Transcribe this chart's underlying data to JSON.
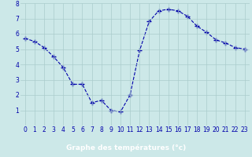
{
  "hours": [
    0,
    1,
    2,
    3,
    4,
    5,
    6,
    7,
    8,
    9,
    10,
    11,
    12,
    13,
    14,
    15,
    16,
    17,
    18,
    19,
    20,
    21,
    22,
    23
  ],
  "temps": [
    5.7,
    5.5,
    5.1,
    4.5,
    3.8,
    2.7,
    2.7,
    1.5,
    1.65,
    1.0,
    0.9,
    2.0,
    4.9,
    6.8,
    7.5,
    7.6,
    7.5,
    7.15,
    6.5,
    6.1,
    5.6,
    5.4,
    5.1,
    5.0
  ],
  "xlim": [
    -0.5,
    23.5
  ],
  "ylim": [
    0,
    8
  ],
  "yticks": [
    1,
    2,
    3,
    4,
    5,
    6,
    7,
    8
  ],
  "xticks": [
    0,
    1,
    2,
    3,
    4,
    5,
    6,
    7,
    8,
    9,
    10,
    11,
    12,
    13,
    14,
    15,
    16,
    17,
    18,
    19,
    20,
    21,
    22,
    23
  ],
  "line_color": "#0000aa",
  "marker": "+",
  "marker_size": 4.0,
  "bg_color": "#cce8e8",
  "grid_color": "#aacccc",
  "xlabel": "Graphe des températures (°c)",
  "xlabel_bg": "#0000aa",
  "xlabel_color": "#ffffff",
  "tick_label_color": "#0000aa",
  "tick_fontsize": 5.5,
  "xlabel_fontsize": 6.5
}
